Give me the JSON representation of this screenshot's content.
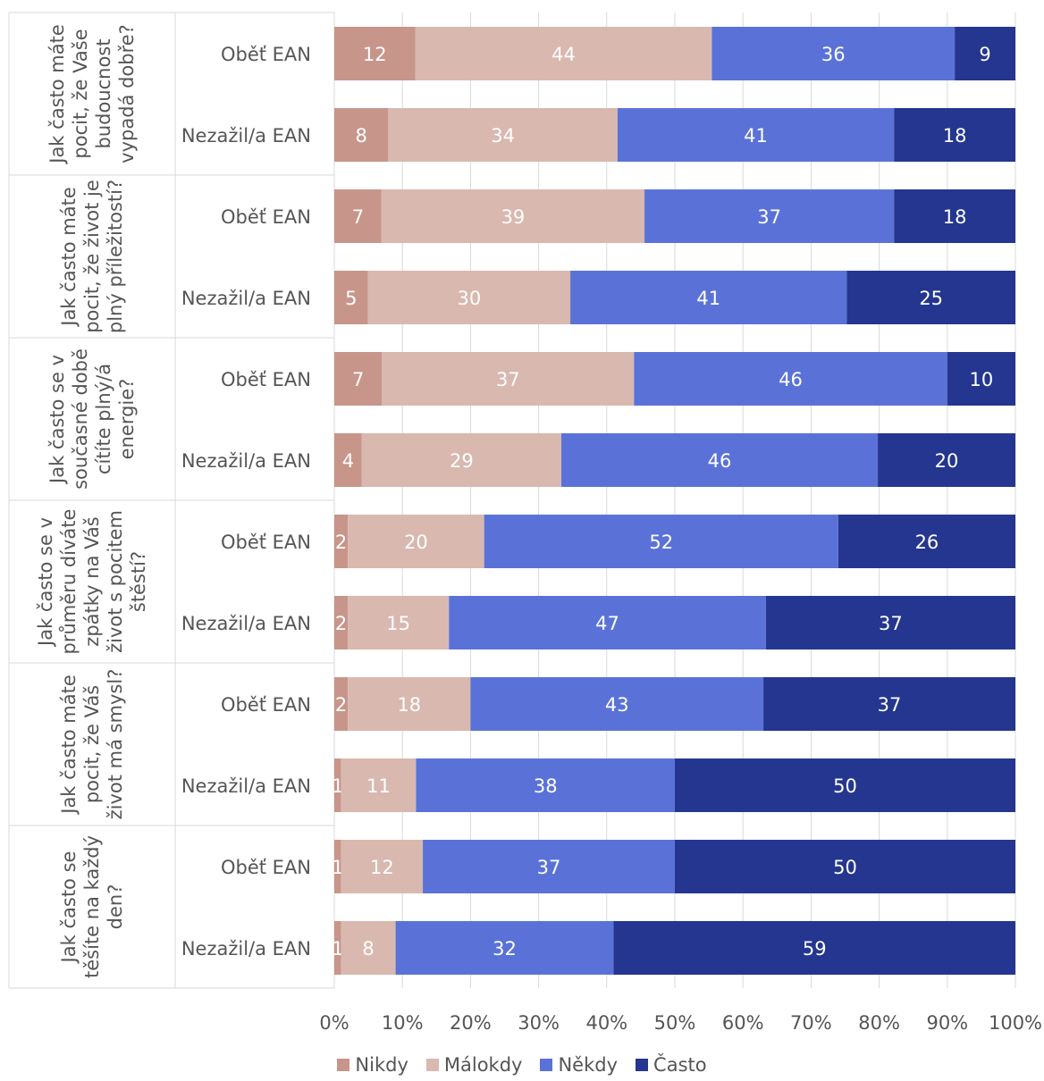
{
  "chart_data": {
    "type": "bar",
    "orientation": "horizontal",
    "stacked": "percent",
    "groups": [
      {
        "question": "Jak často máte pocit, že Vaše budoucnost vypadá dobře?",
        "label_lines": [
          "Jak často máte",
          "pocit, že Vaše",
          "budoucnost",
          "vypadá dobře?"
        ]
      },
      {
        "question": "Jak často máte pocit, že život je plný příležitostí?",
        "label_lines": [
          "Jak často máte",
          "pocit, že život je",
          "plný příležitostí?"
        ]
      },
      {
        "question": "Jak často se v současné době cítíte plný/á energie?",
        "label_lines": [
          "Jak často se v",
          "současné době",
          "cítíte plný/á",
          "energie?"
        ]
      },
      {
        "question": "Jak často se v průměru díváte zpátky na Váš život s pocitem štěstí?",
        "label_lines": [
          "Jak často se v",
          "průměru díváte",
          "zpátky na Váš",
          "život s pocitem",
          "štěstí?"
        ]
      },
      {
        "question": "Jak často máte pocit, že Váš život má smysl?",
        "label_lines": [
          "Jak často máte",
          "pocit, že Váš",
          "život má smysl?"
        ]
      },
      {
        "question": "Jak často se těšíte na každý den?",
        "label_lines": [
          "Jak často se",
          "těšíte na každý",
          "den?"
        ]
      }
    ],
    "categories": [
      "Oběť EAN",
      "Nezažil/a EAN"
    ],
    "series": [
      {
        "name": "Nikdy",
        "color": "#c8958a"
      },
      {
        "name": "Málokdy",
        "color": "#d9b8b0"
      },
      {
        "name": "Někdy",
        "color": "#5a72d8"
      },
      {
        "name": "Často",
        "color": "#24368f"
      }
    ],
    "rows": [
      {
        "group": 0,
        "category": "Oběť EAN",
        "values": [
          12,
          44,
          36,
          9
        ]
      },
      {
        "group": 0,
        "category": "Nezažil/a EAN",
        "values": [
          8,
          34,
          41,
          18
        ]
      },
      {
        "group": 1,
        "category": "Oběť EAN",
        "values": [
          7,
          39,
          37,
          18
        ]
      },
      {
        "group": 1,
        "category": "Nezažil/a EAN",
        "values": [
          5,
          30,
          41,
          25
        ]
      },
      {
        "group": 2,
        "category": "Oběť EAN",
        "values": [
          7,
          37,
          46,
          10
        ]
      },
      {
        "group": 2,
        "category": "Nezažil/a EAN",
        "values": [
          4,
          29,
          46,
          20
        ]
      },
      {
        "group": 3,
        "category": "Oběť EAN",
        "values": [
          2,
          20,
          52,
          26
        ]
      },
      {
        "group": 3,
        "category": "Nezažil/a EAN",
        "values": [
          2,
          15,
          47,
          37
        ]
      },
      {
        "group": 4,
        "category": "Oběť EAN",
        "values": [
          2,
          18,
          43,
          37
        ]
      },
      {
        "group": 4,
        "category": "Nezažil/a EAN",
        "values": [
          1,
          11,
          38,
          50
        ]
      },
      {
        "group": 5,
        "category": "Oběť EAN",
        "values": [
          1,
          12,
          37,
          50
        ]
      },
      {
        "group": 5,
        "category": "Nezažil/a EAN",
        "values": [
          1,
          8,
          32,
          59
        ]
      }
    ],
    "x_ticks": [
      "0%",
      "10%",
      "20%",
      "30%",
      "40%",
      "50%",
      "60%",
      "70%",
      "80%",
      "90%",
      "100%"
    ],
    "xlim": [
      0,
      100
    ],
    "grid": true,
    "legend_position": "bottom",
    "label_color": "#ffffff",
    "axis_text_color": "#555555",
    "grid_color": "#d9d9d9"
  }
}
